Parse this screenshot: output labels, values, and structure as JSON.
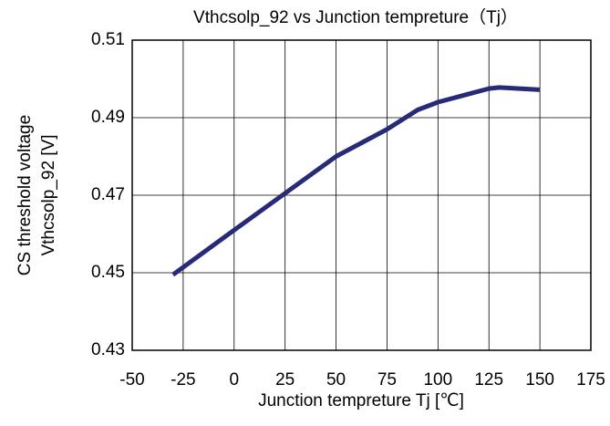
{
  "chart_data": {
    "type": "line",
    "title": "Vthcsolp_92 vs Junction tempreture（Tj）",
    "x_label": "Junction tempreture Tj [℃]",
    "y_label": [
      "CS threshold voltage",
      "Vthcsolp_92 [V]"
    ],
    "x": [
      -30,
      0,
      25,
      50,
      75,
      90,
      100,
      125,
      130,
      150
    ],
    "series": [
      {
        "name": "Vthcsolp_92",
        "color": "#262a78",
        "values": [
          0.4495,
          0.461,
          0.4705,
          0.48,
          0.487,
          0.492,
          0.494,
          0.4975,
          0.4978,
          0.4972
        ]
      }
    ],
    "xlim": [
      -50,
      175
    ],
    "xticks": [
      -50,
      -25,
      0,
      25,
      50,
      75,
      100,
      125,
      150,
      175
    ],
    "ylim": [
      0.43,
      0.51
    ],
    "yticks": [
      0.43,
      0.45,
      0.47,
      0.49,
      0.51
    ],
    "grid": true
  }
}
